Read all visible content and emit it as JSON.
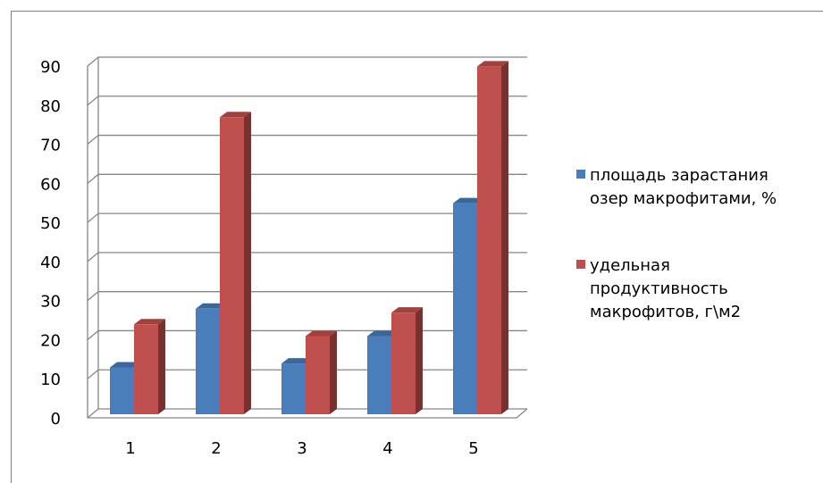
{
  "chart_data": {
    "type": "bar",
    "categories": [
      "1",
      "2",
      "3",
      "4",
      "5"
    ],
    "series": [
      {
        "name": "площадь зарастания озер макрофитами, %",
        "values": [
          12,
          27,
          13,
          20,
          54
        ],
        "color": "#4a7ebb"
      },
      {
        "name": "удельная продуктивность макрофитов, г\\м2",
        "values": [
          23,
          76,
          20,
          26,
          89
        ],
        "color": "#c0504d"
      }
    ],
    "ylim": [
      0,
      90
    ],
    "yticks": [
      "0",
      "10",
      "20",
      "30",
      "40",
      "50",
      "60",
      "70",
      "80",
      "90"
    ],
    "grid": true,
    "legend_position": "right",
    "legend": [
      {
        "lines": [
          "площадь зарастания",
          "озер макрофитами, %"
        ]
      },
      {
        "lines": [
          "удельная",
          "продуктивность",
          "макрофитов, г\\м2"
        ]
      }
    ]
  }
}
